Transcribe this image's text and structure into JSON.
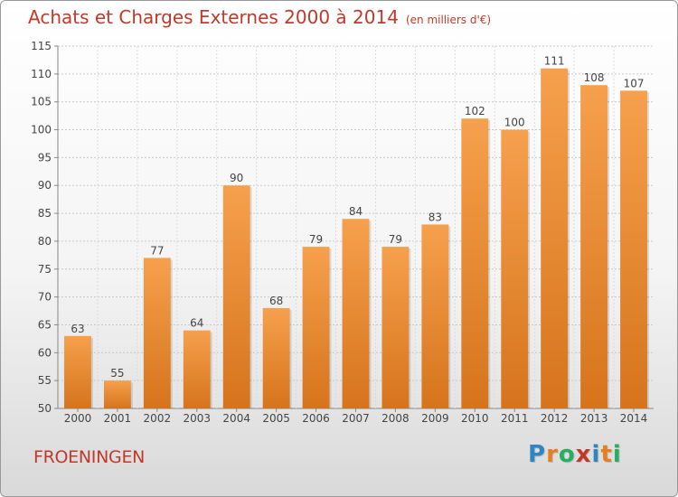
{
  "header": {
    "title": "Achats et Charges Externes 2000 à 2014",
    "subtitle": "(en milliers d'€)"
  },
  "footer": {
    "commune": "FROENINGEN",
    "brand_letters": [
      "P",
      "r",
      "o",
      "x",
      "i",
      "t",
      "i"
    ],
    "brand_colors": [
      "#2e86c1",
      "#e67e22",
      "#27ae60",
      "#c0392b",
      "#2e86c1",
      "#e67e22",
      "#27ae60"
    ]
  },
  "chart_data": {
    "type": "bar",
    "title": "Achats et Charges Externes 2000 à 2014",
    "subtitle": "(en milliers d'€)",
    "categories": [
      "2000",
      "2001",
      "2002",
      "2003",
      "2004",
      "2005",
      "2006",
      "2007",
      "2008",
      "2009",
      "2010",
      "2011",
      "2012",
      "2013",
      "2014"
    ],
    "values": [
      63,
      55,
      77,
      64,
      90,
      68,
      79,
      84,
      79,
      83,
      102,
      100,
      111,
      108,
      107
    ],
    "ylim": [
      50,
      115
    ],
    "yticks": [
      50,
      55,
      60,
      65,
      70,
      75,
      80,
      85,
      90,
      95,
      100,
      105,
      110,
      115
    ],
    "grid": true,
    "bar_color_top": "#f6a04d",
    "bar_color_bottom": "#d6741c",
    "xlabel": "",
    "ylabel": ""
  }
}
